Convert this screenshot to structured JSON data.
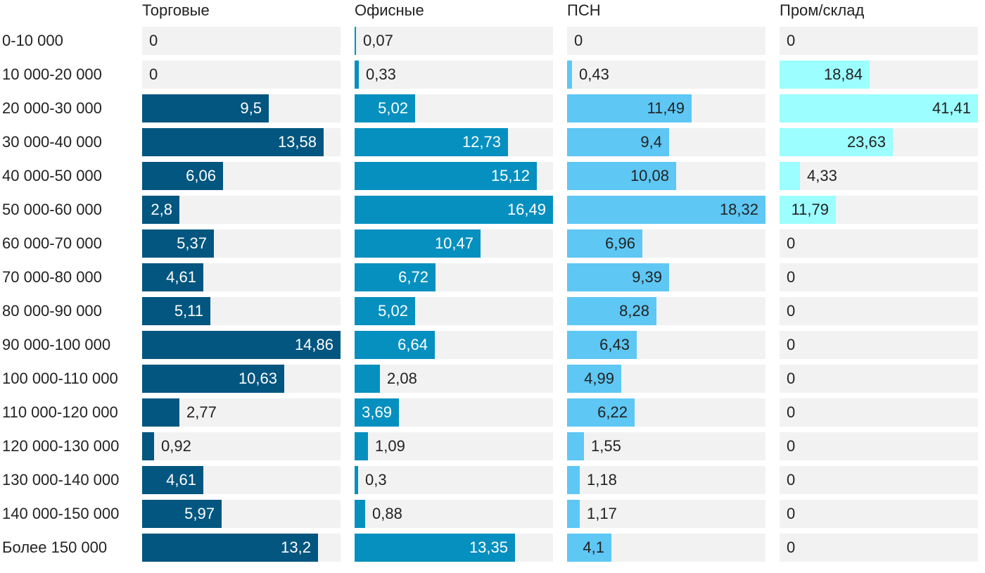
{
  "chart_data": {
    "type": "bar",
    "orientation": "horizontal",
    "layout": "small-multiples",
    "value_format": "decimal-comma",
    "categories": [
      "0-10 000",
      "10 000-20 000",
      "20 000-30 000",
      "30 000-40 000",
      "40 000-50 000",
      "50 000-60 000",
      "60 000-70 000",
      "70 000-80 000",
      "80 000-90 000",
      "90 000-100 000",
      "100 000-110 000",
      "110 000-120 000",
      "120 000-130 000",
      "130 000-140 000",
      "140 000-150 000",
      "Более 150 000"
    ],
    "series": [
      {
        "name": "Торговые",
        "color": "#02567f",
        "max": 14.86,
        "labels": [
          "0",
          "0",
          "9,5",
          "13,58",
          "6,06",
          "2,8",
          "5,37",
          "4,61",
          "5,11",
          "14,86",
          "10,63",
          "2,77",
          "0,92",
          "4,61",
          "5,97",
          "13,2"
        ],
        "values": [
          0,
          0,
          9.5,
          13.58,
          6.06,
          2.8,
          5.37,
          4.61,
          5.11,
          14.86,
          10.63,
          2.77,
          0.92,
          4.61,
          5.97,
          13.2
        ]
      },
      {
        "name": "Офисные",
        "color": "#0690bf",
        "max": 16.49,
        "labels": [
          "0,07",
          "0,33",
          "5,02",
          "12,73",
          "15,12",
          "16,49",
          "10,47",
          "6,72",
          "5,02",
          "6,64",
          "2,08",
          "3,69",
          "1,09",
          "0,3",
          "0,88",
          "13,35"
        ],
        "values": [
          0.07,
          0.33,
          5.02,
          12.73,
          15.12,
          16.49,
          10.47,
          6.72,
          5.02,
          6.64,
          2.08,
          3.69,
          1.09,
          0.3,
          0.88,
          13.35
        ]
      },
      {
        "name": "ПСН",
        "color": "#5ec7f4",
        "max": 18.32,
        "labels": [
          "0",
          "0,43",
          "11,49",
          "9,4",
          "10,08",
          "18,32",
          "6,96",
          "9,39",
          "8,28",
          "6,43",
          "4,99",
          "6,22",
          "1,55",
          "1,18",
          "1,17",
          "4,1"
        ],
        "values": [
          0,
          0.43,
          11.49,
          9.4,
          10.08,
          18.32,
          6.96,
          9.39,
          8.28,
          6.43,
          4.99,
          6.22,
          1.55,
          1.18,
          1.17,
          4.1
        ]
      },
      {
        "name": "Пром/склад",
        "color": "#9cfefe",
        "max": 41.41,
        "labels": [
          "0",
          "18,84",
          "41,41",
          "23,63",
          "4,33",
          "11,79",
          "0",
          "0",
          "0",
          "0",
          "0",
          "0",
          "0",
          "0",
          "0",
          "0"
        ],
        "values": [
          0,
          18.84,
          41.41,
          23.63,
          4.33,
          11.79,
          0,
          0,
          0,
          0,
          0,
          0,
          0,
          0,
          0,
          0
        ]
      }
    ]
  }
}
